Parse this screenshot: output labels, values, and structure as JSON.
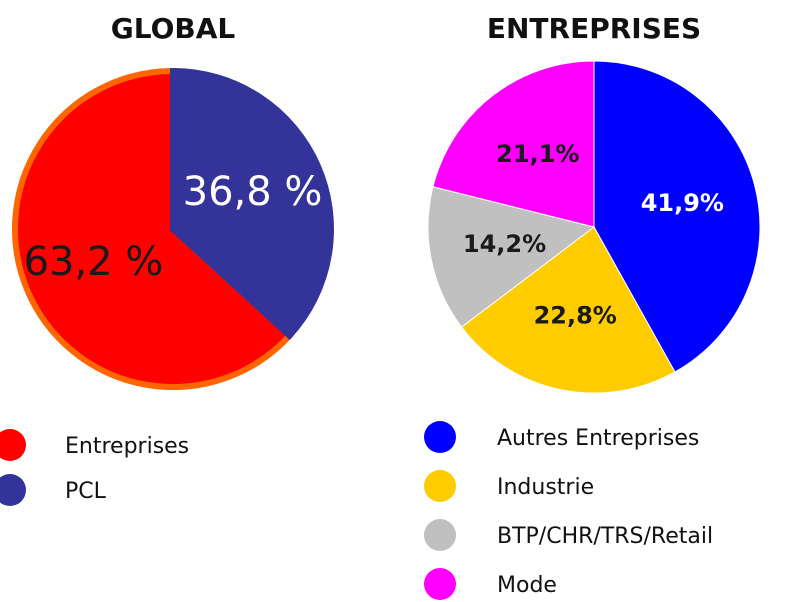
{
  "chart_data": [
    {
      "type": "pie",
      "title": "GLOBAL",
      "counterclock": true,
      "categories": [
        "Entreprises",
        "PCL"
      ],
      "values": [
        63.2,
        36.8
      ],
      "value_labels": [
        "63,2 %",
        "36,8 %"
      ],
      "colors": [
        "#ff0000",
        "#333399"
      ],
      "edgecolors": [
        "#ff6600",
        "#333399"
      ],
      "label_colors": [
        "#1a1a1a",
        "#ffffff"
      ]
    },
    {
      "type": "pie",
      "title": "ENTREPRISES",
      "counterclock": false,
      "categories": [
        "Autres Entreprises",
        "Industrie",
        "BTP/CHR/TRS/Retail",
        "Mode"
      ],
      "values": [
        41.9,
        22.8,
        14.2,
        21.1
      ],
      "value_labels": [
        "41,9%",
        "22,8%",
        "14,2%",
        "21,1%"
      ],
      "colors": [
        "#0000ff",
        "#ffcc00",
        "#c0c0c0",
        "#ff00ff"
      ],
      "edgecolors": [
        "#ffffff",
        "#ffffff",
        "#ffffff",
        "#ffffff"
      ],
      "label_colors": [
        "#ffffff",
        "#1a1a1a",
        "#1a1a1a",
        "#1a1a1a"
      ]
    }
  ]
}
